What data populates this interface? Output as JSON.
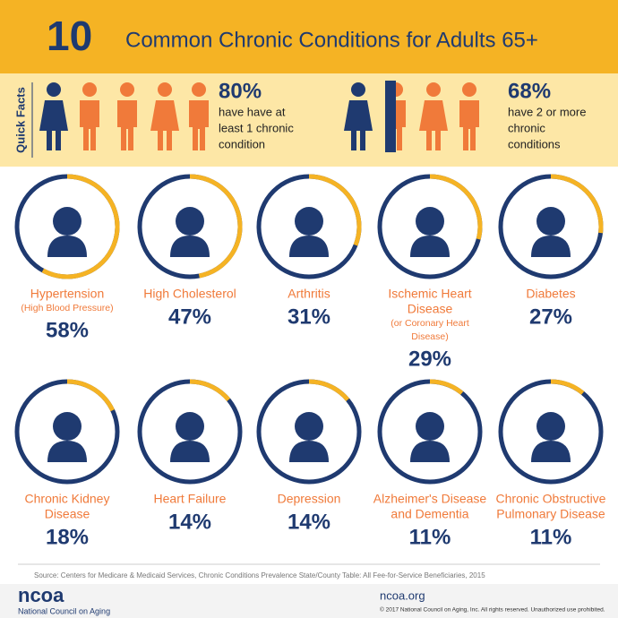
{
  "header": {
    "number": "10",
    "title": "Common Chronic Conditions for Adults 65+"
  },
  "quick_facts": {
    "label": "Quick Facts",
    "facts": [
      {
        "value": "80%",
        "lines": [
          "have have at",
          "least 1 chronic",
          "condition"
        ]
      },
      {
        "value": "68%",
        "lines": [
          "have 2 or more",
          "chronic",
          "conditions"
        ]
      }
    ]
  },
  "conditions": [
    {
      "name": [
        "Hypertension"
      ],
      "note": [
        "(High Blood Pressure)"
      ],
      "value": 58,
      "value_label": "58%"
    },
    {
      "name": [
        "High Cholesterol"
      ],
      "note": [],
      "value": 47,
      "value_label": "47%"
    },
    {
      "name": [
        "Arthritis"
      ],
      "note": [],
      "value": 31,
      "value_label": "31%"
    },
    {
      "name": [
        "Ischemic Heart",
        "Disease"
      ],
      "note": [
        "(or Coronary Heart",
        "Disease)"
      ],
      "value": 29,
      "value_label": "29%"
    },
    {
      "name": [
        "Diabetes"
      ],
      "note": [],
      "value": 27,
      "value_label": "27%"
    },
    {
      "name": [
        "Chronic Kidney",
        "Disease"
      ],
      "note": [],
      "value": 18,
      "value_label": "18%"
    },
    {
      "name": [
        "Heart Failure"
      ],
      "note": [],
      "value": 14,
      "value_label": "14%"
    },
    {
      "name": [
        "Depression"
      ],
      "note": [],
      "value": 14,
      "value_label": "14%"
    },
    {
      "name": [
        "Alzheimer's Disease",
        "and Dementia"
      ],
      "note": [],
      "value": 11,
      "value_label": "11%"
    },
    {
      "name": [
        "Chronic Obstructive",
        "Pulmonary Disease"
      ],
      "note": [],
      "value": 11,
      "value_label": "11%"
    }
  ],
  "footer": {
    "source": "Source: Centers for Medicare & Medicaid Services, Chronic Conditions Prevalence State/County Table: All Fee-for-Service Beneficiaries, 2015",
    "logo": "ncoa",
    "org": "National Council on Aging",
    "site": "ncoa.org",
    "copyright": "© 2017 National Council on Aging, Inc. All rights reserved. Unauthorized use prohibited."
  }
}
